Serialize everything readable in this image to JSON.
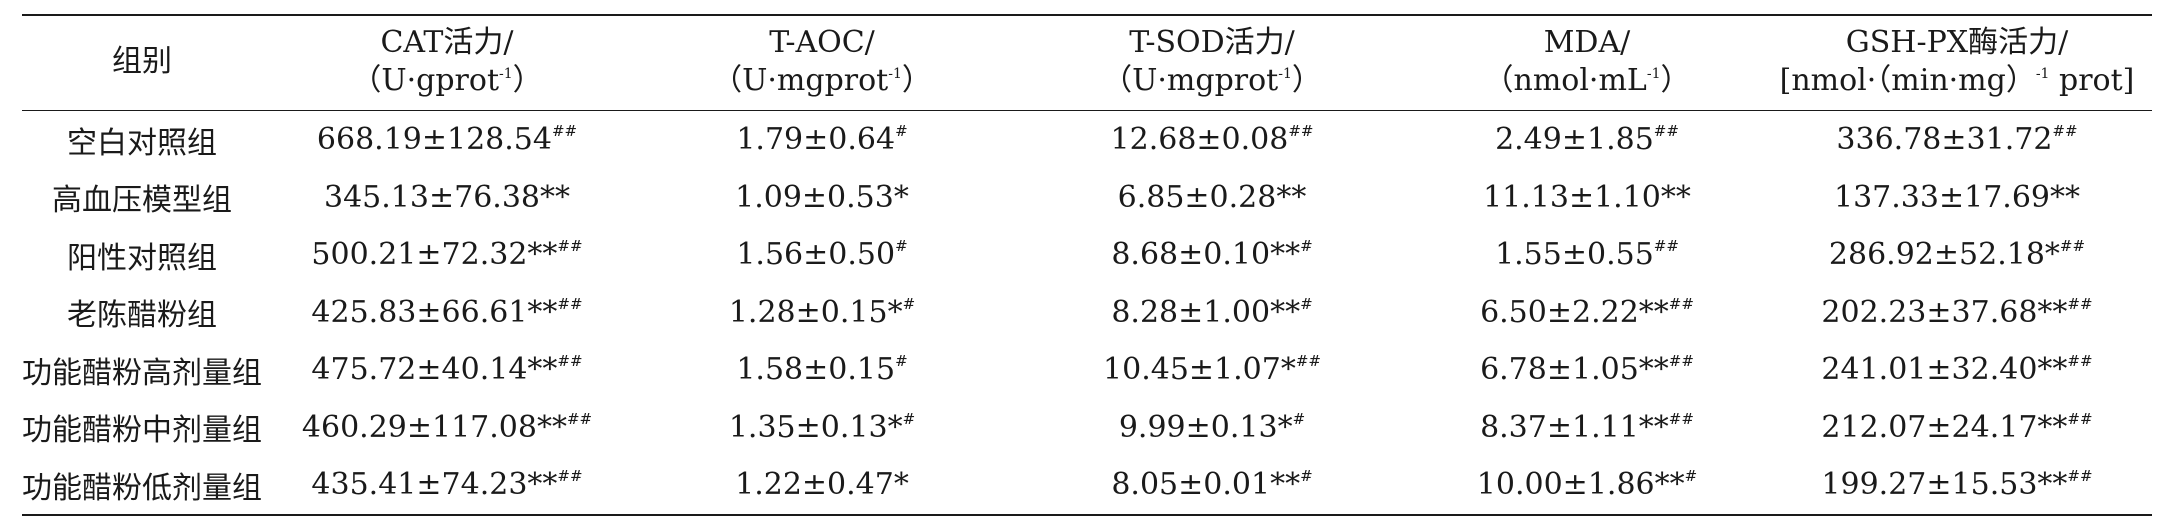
{
  "table": {
    "headers": [
      {
        "line1": "组别",
        "line2": "",
        "sup": "",
        "tail": ""
      },
      {
        "line1": "CAT活力/",
        "line2": "（U·gprot",
        "sup": "-1",
        "tail": "）"
      },
      {
        "line1": "T-AOC/",
        "line2": "（U·mgprot",
        "sup": "-1",
        "tail": "）"
      },
      {
        "line1": "T-SOD活力/",
        "line2": "（U·mgprot",
        "sup": "-1",
        "tail": "）"
      },
      {
        "line1": "MDA/",
        "line2": "（nmol·mL",
        "sup": "-1",
        "tail": "）"
      },
      {
        "line1": "GSH-PX酶活力/",
        "line2": "[nmol·（min·mg）",
        "sup": "-1",
        "tail": " prot]"
      }
    ],
    "rows": [
      {
        "group": "空白对照组",
        "cells": [
          {
            "v": "668.19±128.54",
            "s": "##"
          },
          {
            "v": "1.79±0.64",
            "s": "#"
          },
          {
            "v": "12.68±0.08",
            "s": "##"
          },
          {
            "v": "2.49±1.85",
            "s": "##"
          },
          {
            "v": "336.78±31.72",
            "s": "##"
          }
        ]
      },
      {
        "group": "高血压模型组",
        "cells": [
          {
            "v": "345.13±76.38**",
            "s": ""
          },
          {
            "v": "1.09±0.53*",
            "s": ""
          },
          {
            "v": "6.85±0.28**",
            "s": ""
          },
          {
            "v": "11.13±1.10**",
            "s": ""
          },
          {
            "v": "137.33±17.69**",
            "s": ""
          }
        ]
      },
      {
        "group": "阳性对照组",
        "cells": [
          {
            "v": "500.21±72.32**",
            "s": "##"
          },
          {
            "v": "1.56±0.50",
            "s": "#"
          },
          {
            "v": "8.68±0.10**",
            "s": "#"
          },
          {
            "v": "1.55±0.55",
            "s": "##"
          },
          {
            "v": "286.92±52.18*",
            "s": "##"
          }
        ]
      },
      {
        "group": "老陈醋粉组",
        "cells": [
          {
            "v": "425.83±66.61**",
            "s": "##"
          },
          {
            "v": "1.28±0.15*",
            "s": "#"
          },
          {
            "v": "8.28±1.00**",
            "s": "#"
          },
          {
            "v": "6.50±2.22**",
            "s": "##"
          },
          {
            "v": "202.23±37.68**",
            "s": "##"
          }
        ]
      },
      {
        "group": "功能醋粉高剂量组",
        "cells": [
          {
            "v": "475.72±40.14**",
            "s": "##"
          },
          {
            "v": "1.58±0.15",
            "s": "#"
          },
          {
            "v": "10.45±1.07*",
            "s": "##"
          },
          {
            "v": "6.78±1.05**",
            "s": "##"
          },
          {
            "v": "241.01±32.40**",
            "s": "##"
          }
        ]
      },
      {
        "group": "功能醋粉中剂量组",
        "cells": [
          {
            "v": "460.29±117.08**",
            "s": "##"
          },
          {
            "v": "1.35±0.13*",
            "s": "#"
          },
          {
            "v": "9.99±0.13*",
            "s": "#"
          },
          {
            "v": "8.37±1.11**",
            "s": "##"
          },
          {
            "v": "212.07±24.17**",
            "s": "##"
          }
        ]
      },
      {
        "group": "功能醋粉低剂量组",
        "cells": [
          {
            "v": "435.41±74.23**",
            "s": "##"
          },
          {
            "v": "1.22±0.47*",
            "s": ""
          },
          {
            "v": "8.05±0.01**",
            "s": "#"
          },
          {
            "v": "10.00±1.86**",
            "s": "#"
          },
          {
            "v": "199.27±15.53**",
            "s": "##"
          }
        ]
      }
    ]
  }
}
